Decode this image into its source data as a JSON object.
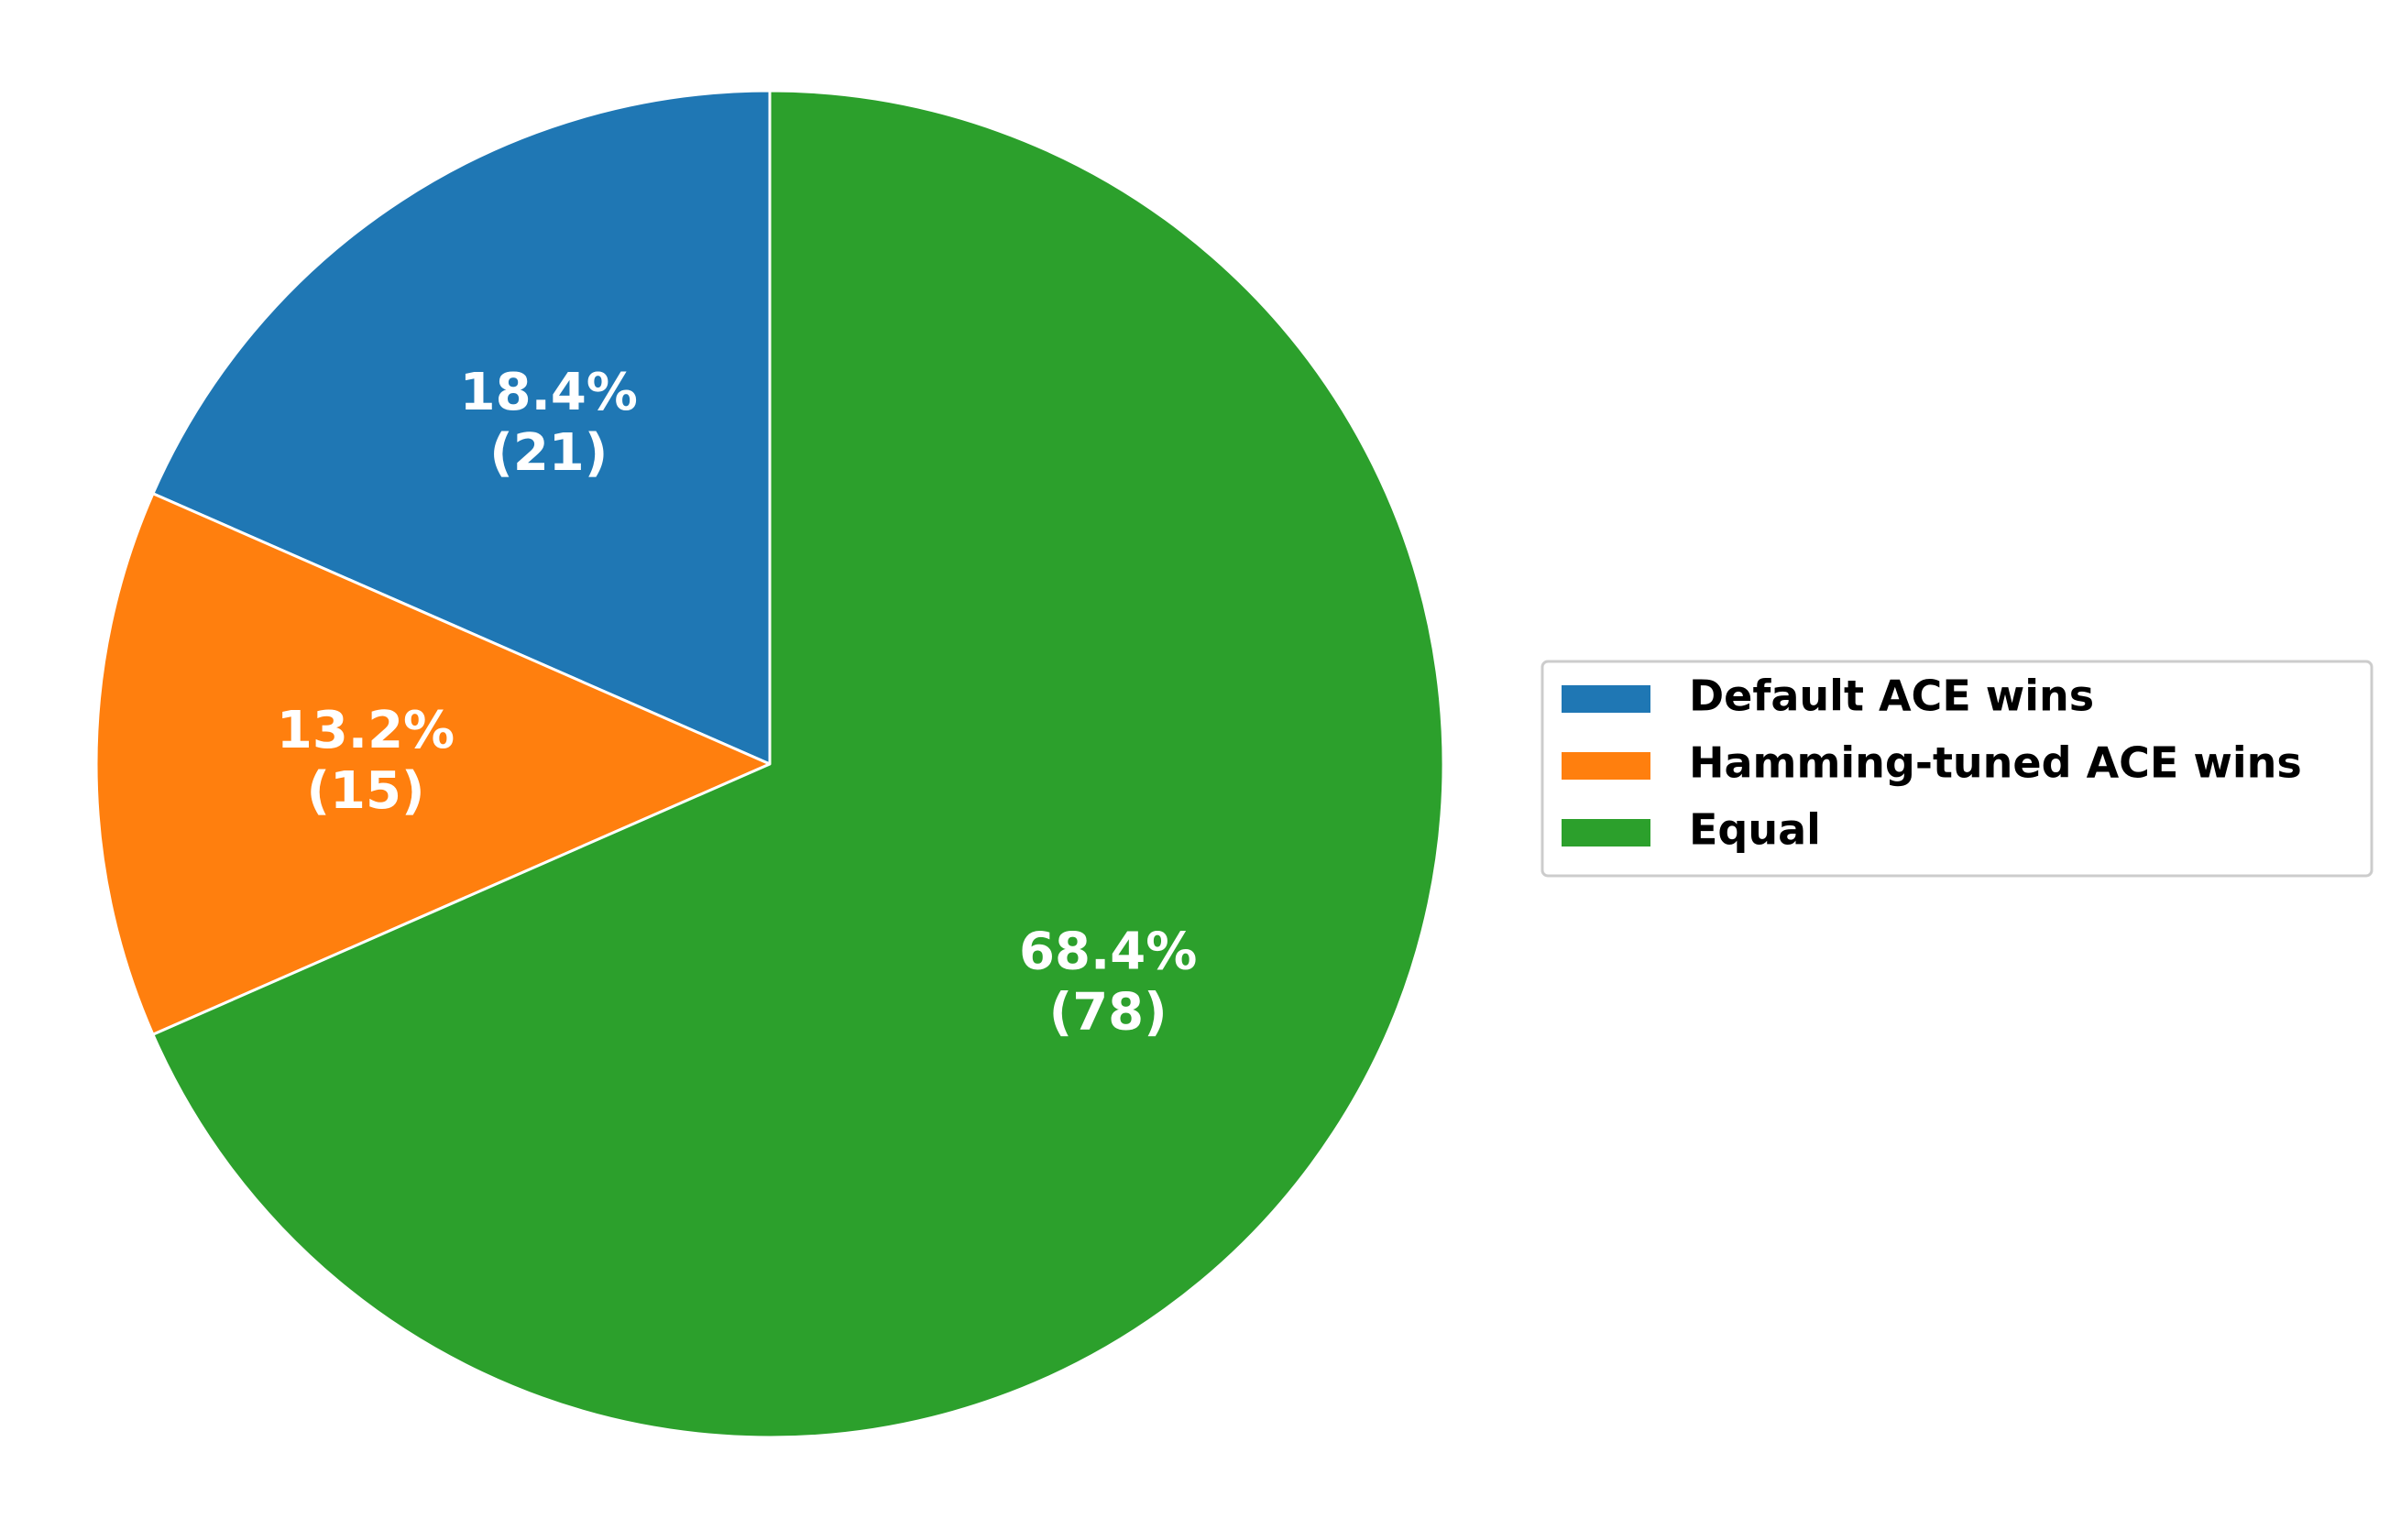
{
  "chart_data": {
    "type": "pie",
    "categories": [
      "Default ACE wins",
      "Hamming-tuned ACE wins",
      "Equal"
    ],
    "values": [
      21,
      15,
      78
    ],
    "count_labels": [
      "(21)",
      "(15)",
      "(78)"
    ],
    "percentages": [
      18.4,
      13.2,
      68.4
    ],
    "percent_labels": [
      "18.4%",
      "13.2%",
      "68.4%"
    ],
    "colors": [
      "#1f77b4",
      "#ff7f0e",
      "#2ca02c"
    ],
    "legend": "right"
  }
}
